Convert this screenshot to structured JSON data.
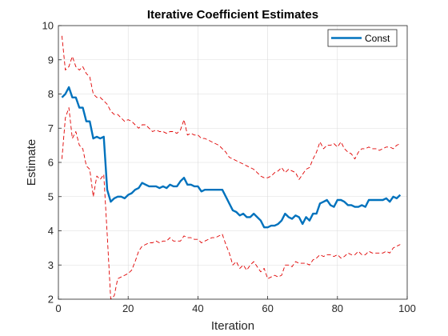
{
  "chart_data": {
    "type": "line",
    "title": "Iterative Coefficient Estimates",
    "xlabel": "Iteration",
    "ylabel": "Estimate",
    "xlim": [
      0,
      100
    ],
    "ylim": [
      2,
      10
    ],
    "xticks": [
      0,
      20,
      40,
      60,
      80,
      100
    ],
    "yticks": [
      2,
      3,
      4,
      5,
      6,
      7,
      8,
      9,
      10
    ],
    "grid": true,
    "legend_position": "top-right",
    "series": [
      {
        "name": "Const",
        "style": "solid",
        "color": "#0072BD",
        "x": [
          1,
          2,
          3,
          4,
          5,
          6,
          7,
          8,
          9,
          10,
          11,
          12,
          13,
          14,
          15,
          16,
          17,
          18,
          19,
          20,
          21,
          22,
          23,
          24,
          25,
          26,
          27,
          28,
          29,
          30,
          31,
          32,
          33,
          34,
          35,
          36,
          37,
          38,
          39,
          40,
          41,
          42,
          43,
          44,
          45,
          46,
          47,
          48,
          49,
          50,
          51,
          52,
          53,
          54,
          55,
          56,
          57,
          58,
          59,
          60,
          61,
          62,
          63,
          64,
          65,
          66,
          67,
          68,
          69,
          70,
          71,
          72,
          73,
          74,
          75,
          76,
          77,
          78,
          79,
          80,
          81,
          82,
          83,
          84,
          85,
          86,
          87,
          88,
          89,
          90,
          91,
          92,
          93,
          94,
          95,
          96,
          97,
          98
        ],
        "y": [
          7.9,
          8.0,
          8.2,
          7.9,
          7.9,
          7.6,
          7.6,
          7.2,
          7.2,
          6.7,
          6.75,
          6.7,
          6.75,
          5.2,
          4.85,
          4.95,
          5.0,
          5.0,
          4.95,
          5.05,
          5.1,
          5.2,
          5.25,
          5.4,
          5.35,
          5.3,
          5.3,
          5.3,
          5.25,
          5.3,
          5.25,
          5.35,
          5.3,
          5.3,
          5.45,
          5.55,
          5.35,
          5.35,
          5.3,
          5.3,
          5.15,
          5.2,
          5.2,
          5.2,
          5.2,
          5.2,
          5.2,
          5.0,
          4.8,
          4.6,
          4.55,
          4.45,
          4.5,
          4.4,
          4.4,
          4.5,
          4.4,
          4.3,
          4.1,
          4.1,
          4.15,
          4.15,
          4.2,
          4.3,
          4.5,
          4.4,
          4.35,
          4.45,
          4.4,
          4.2,
          4.4,
          4.3,
          4.5,
          4.5,
          4.8,
          4.85,
          4.9,
          4.75,
          4.7,
          4.9,
          4.9,
          4.85,
          4.75,
          4.75,
          4.7,
          4.7,
          4.75,
          4.7,
          4.9,
          4.9,
          4.9,
          4.9,
          4.9,
          4.95,
          4.85,
          5.0,
          4.95,
          5.05
        ]
      },
      {
        "style": "dashed",
        "color": "#E00000",
        "x": [
          1,
          2,
          3,
          4,
          5,
          6,
          7,
          8,
          9,
          10,
          11,
          12,
          13,
          14,
          15,
          16,
          17,
          18,
          19,
          20,
          21,
          22,
          23,
          24,
          25,
          26,
          27,
          28,
          29,
          30,
          31,
          32,
          33,
          34,
          35,
          36,
          37,
          38,
          39,
          40,
          41,
          42,
          43,
          44,
          45,
          46,
          47,
          48,
          49,
          50,
          51,
          52,
          53,
          54,
          55,
          56,
          57,
          58,
          59,
          60,
          61,
          62,
          63,
          64,
          65,
          66,
          67,
          68,
          69,
          70,
          71,
          72,
          73,
          74,
          75,
          76,
          77,
          78,
          79,
          80,
          81,
          82,
          83,
          84,
          85,
          86,
          87,
          88,
          89,
          90,
          91,
          92,
          93,
          94,
          95,
          96,
          97,
          98
        ],
        "y": [
          9.7,
          8.7,
          8.8,
          9.1,
          8.8,
          8.7,
          8.8,
          8.6,
          8.5,
          8.0,
          7.9,
          7.9,
          7.8,
          7.7,
          7.5,
          7.4,
          7.4,
          7.3,
          7.2,
          7.25,
          7.2,
          7.1,
          7.0,
          7.1,
          7.1,
          7.0,
          6.9,
          6.95,
          6.9,
          6.9,
          6.85,
          6.9,
          6.9,
          6.85,
          6.95,
          7.25,
          6.8,
          6.85,
          6.8,
          6.8,
          6.7,
          6.7,
          6.65,
          6.6,
          6.55,
          6.5,
          6.4,
          6.3,
          6.15,
          6.1,
          6.05,
          6.0,
          5.95,
          5.9,
          5.85,
          5.8,
          5.7,
          5.6,
          5.55,
          5.55,
          5.6,
          5.7,
          5.75,
          5.85,
          5.7,
          5.8,
          5.75,
          5.7,
          5.5,
          5.65,
          5.8,
          5.85,
          6.1,
          6.3,
          6.6,
          6.4,
          6.5,
          6.5,
          6.55,
          6.45,
          6.6,
          6.4,
          6.3,
          6.25,
          6.1,
          6.3,
          6.4,
          6.4,
          6.45,
          6.4,
          6.4,
          6.35,
          6.4,
          6.45,
          6.45,
          6.4,
          6.5,
          6.55
        ]
      },
      {
        "style": "dashed",
        "color": "#E00000",
        "x": [
          1,
          2,
          3,
          4,
          5,
          6,
          7,
          8,
          9,
          10,
          11,
          12,
          13,
          14,
          15,
          16,
          17,
          18,
          19,
          20,
          21,
          22,
          23,
          24,
          25,
          26,
          27,
          28,
          29,
          30,
          31,
          32,
          33,
          34,
          35,
          36,
          37,
          38,
          39,
          40,
          41,
          42,
          43,
          44,
          45,
          46,
          47,
          48,
          49,
          50,
          51,
          52,
          53,
          54,
          55,
          56,
          57,
          58,
          59,
          60,
          61,
          62,
          63,
          64,
          65,
          66,
          67,
          68,
          69,
          70,
          71,
          72,
          73,
          74,
          75,
          76,
          77,
          78,
          79,
          80,
          81,
          82,
          83,
          84,
          85,
          86,
          87,
          88,
          89,
          90,
          91,
          92,
          93,
          94,
          95,
          96,
          97,
          98
        ],
        "y": [
          6.1,
          7.3,
          7.6,
          6.7,
          6.9,
          6.5,
          6.4,
          5.9,
          5.8,
          5.0,
          5.6,
          5.5,
          5.65,
          3.9,
          2.0,
          2.1,
          2.6,
          2.65,
          2.7,
          2.75,
          2.85,
          3.1,
          3.4,
          3.55,
          3.6,
          3.65,
          3.65,
          3.7,
          3.65,
          3.7,
          3.7,
          3.8,
          3.7,
          3.7,
          3.7,
          3.85,
          3.8,
          3.8,
          3.75,
          3.75,
          3.65,
          3.7,
          3.75,
          3.8,
          3.8,
          3.85,
          3.9,
          3.6,
          3.35,
          3.0,
          3.1,
          2.9,
          3.0,
          2.85,
          3.0,
          3.1,
          2.95,
          2.8,
          2.9,
          2.6,
          2.65,
          2.7,
          2.65,
          2.7,
          3.0,
          3.0,
          2.95,
          3.1,
          3.05,
          3.05,
          3.05,
          3.0,
          3.15,
          3.2,
          3.3,
          3.25,
          3.3,
          3.3,
          3.25,
          3.3,
          3.2,
          3.25,
          3.35,
          3.3,
          3.3,
          3.4,
          3.3,
          3.3,
          3.4,
          3.35,
          3.35,
          3.35,
          3.35,
          3.4,
          3.35,
          3.5,
          3.55,
          3.6
        ]
      }
    ]
  }
}
